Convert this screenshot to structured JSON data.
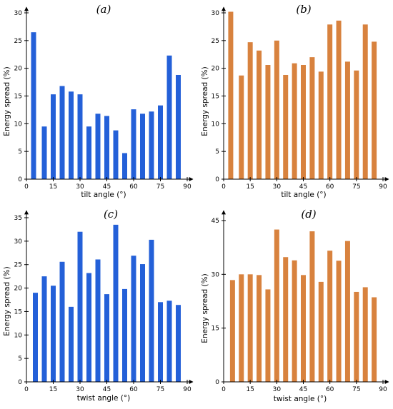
{
  "chart_data": [
    {
      "panel_label": "(a)",
      "type": "bar",
      "xlabel": "tilt angle (°)",
      "ylabel": "Energy spread (%)",
      "xlim": [
        0,
        90
      ],
      "ylim": [
        0,
        30
      ],
      "xticks": [
        0,
        15,
        30,
        45,
        60,
        75,
        90
      ],
      "yticks": [
        0,
        5,
        10,
        15,
        20,
        25,
        30
      ],
      "color": "#2460d8",
      "x": [
        4,
        10,
        15,
        20,
        25,
        30,
        35,
        40,
        45,
        50,
        55,
        60,
        65,
        70,
        75,
        80,
        85
      ],
      "values": [
        26.5,
        9.5,
        15.3,
        16.8,
        15.8,
        15.3,
        9.5,
        11.8,
        11.4,
        8.8,
        4.7,
        12.6,
        11.8,
        12.2,
        13.3,
        22.3,
        18.8
      ]
    },
    {
      "panel_label": "(b)",
      "type": "bar",
      "xlabel": "tilt angle (°)",
      "ylabel": "Energy spread (%)",
      "xlim": [
        0,
        90
      ],
      "ylim": [
        0,
        30
      ],
      "xticks": [
        0,
        15,
        30,
        45,
        60,
        75,
        90
      ],
      "yticks": [
        0,
        5,
        10,
        15,
        20,
        25,
        30
      ],
      "color": "#d8823e",
      "x": [
        4,
        10,
        15,
        20,
        25,
        30,
        35,
        40,
        45,
        50,
        55,
        60,
        65,
        70,
        75,
        80,
        85
      ],
      "values": [
        30.2,
        18.7,
        24.7,
        23.2,
        20.6,
        25.0,
        18.8,
        20.9,
        20.6,
        22.0,
        19.4,
        27.9,
        28.6,
        21.2,
        19.6,
        27.9,
        24.8
      ]
    },
    {
      "panel_label": "(c)",
      "type": "bar",
      "xlabel": "twist angle (°)",
      "ylabel": "Energy spread (%)",
      "xlim": [
        0,
        90
      ],
      "ylim": [
        0,
        35
      ],
      "xticks": [
        0,
        15,
        30,
        45,
        60,
        75,
        90
      ],
      "yticks": [
        0,
        5,
        10,
        15,
        20,
        25,
        30,
        35
      ],
      "color": "#2460d8",
      "x": [
        5,
        10,
        15,
        20,
        25,
        30,
        35,
        40,
        45,
        50,
        55,
        60,
        65,
        70,
        75,
        80,
        85
      ],
      "values": [
        19.0,
        22.5,
        20.5,
        25.6,
        16.0,
        32.0,
        23.2,
        26.1,
        18.7,
        33.5,
        19.8,
        26.9,
        25.1,
        30.3,
        17.0,
        17.3,
        16.4
      ]
    },
    {
      "panel_label": "(d)",
      "type": "bar",
      "xlabel": "twist angle (°)",
      "ylabel": "Energy spread (%)",
      "xlim": [
        0,
        90
      ],
      "ylim": [
        0,
        45
      ],
      "xticks": [
        0,
        15,
        30,
        45,
        60,
        75,
        90
      ],
      "yticks": [
        0,
        15,
        30,
        45
      ],
      "color": "#d8823e",
      "x": [
        5,
        10,
        15,
        20,
        25,
        30,
        35,
        40,
        45,
        50,
        55,
        60,
        65,
        70,
        75,
        80,
        85
      ],
      "values": [
        28.4,
        30.0,
        30.0,
        29.8,
        25.8,
        42.5,
        34.8,
        33.9,
        29.8,
        42.0,
        27.9,
        36.6,
        33.8,
        39.3,
        25.1,
        26.4,
        23.6
      ]
    }
  ]
}
